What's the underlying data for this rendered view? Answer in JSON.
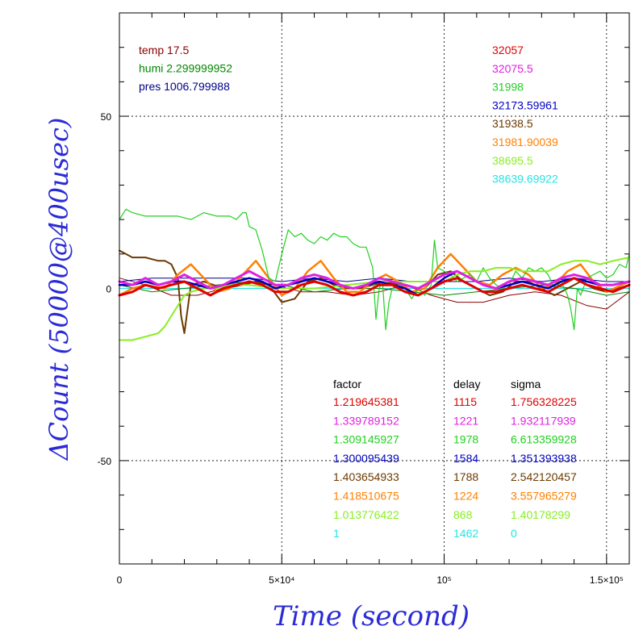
{
  "chart_data": {
    "type": "line",
    "title": "",
    "xlabel": "Time (second)",
    "ylabel": "ΔCount (50000@400usec)",
    "xlim": [
      0,
      157000
    ],
    "ylim": [
      -80,
      80
    ],
    "x_ticks": [
      {
        "value": 0,
        "label": "0"
      },
      {
        "value": 50000,
        "label": "5×10⁴"
      },
      {
        "value": 100000,
        "label": "10⁵"
      },
      {
        "value": 150000,
        "label": "1.5×10⁵"
      }
    ],
    "y_ticks": [
      {
        "value": 50,
        "label": "50"
      },
      {
        "value": 0,
        "label": "0"
      },
      {
        "value": -50,
        "label": "-50"
      }
    ],
    "grid": true,
    "env_labels": [
      {
        "text": "temp 17.5",
        "color": "#8b0000"
      },
      {
        "text": "humi 2.299999952",
        "color": "#008800"
      },
      {
        "text": "pres 1006.799988",
        "color": "#00008b"
      }
    ],
    "mean_labels": [
      {
        "text": "32057",
        "color": "#e00000"
      },
      {
        "text": "32075.5",
        "color": "#e020e0"
      },
      {
        "text": "31998",
        "color": "#20d020"
      },
      {
        "text": "32173.59961",
        "color": "#0000c0"
      },
      {
        "text": "31938.5",
        "color": "#6b3a00"
      },
      {
        "text": "31981.90039",
        "color": "#ff8000"
      },
      {
        "text": "38695.5",
        "color": "#88ee22"
      },
      {
        "text": "38639.69922",
        "color": "#22e5e5"
      }
    ],
    "table": {
      "headers": [
        "factor",
        "delay",
        "sigma"
      ],
      "rows": [
        {
          "factor": "1.219645381",
          "delay": "1115",
          "sigma": "1.756328225",
          "color": "#e00000"
        },
        {
          "factor": "1.339789152",
          "delay": "1221",
          "sigma": "1.932117939",
          "color": "#e020e0"
        },
        {
          "factor": "1.309145927",
          "delay": "1978",
          "sigma": "6.613359928",
          "color": "#20d020"
        },
        {
          "factor": "1.300095439",
          "delay": "1584",
          "sigma": "1.351393938",
          "color": "#0000c0"
        },
        {
          "factor": "1.403654933",
          "delay": "1788",
          "sigma": "2.542120457",
          "color": "#6b3a00"
        },
        {
          "factor": "1.418510675",
          "delay": "1224",
          "sigma": "3.557965279",
          "color": "#ff8000"
        },
        {
          "factor": "1.013776422",
          "delay": "868",
          "sigma": "1.40178299",
          "color": "#88ee22"
        },
        {
          "factor": "1",
          "delay": "1462",
          "sigma": "0",
          "color": "#22e5e5"
        }
      ]
    },
    "series": [
      {
        "color": "#22e5e5",
        "width": 1.2,
        "x": [
          0,
          20000,
          40000,
          60000,
          70000,
          80000,
          90000,
          100000,
          110000,
          120000,
          130000,
          140000,
          157000
        ],
        "y": [
          0,
          0,
          0,
          0,
          0,
          0,
          0,
          0,
          0,
          0,
          0,
          0,
          0
        ]
      },
      {
        "color": "#8b0000",
        "width": 1,
        "x": [
          0,
          8000,
          16000,
          24000,
          32000,
          40000,
          48000,
          56000,
          64000,
          72000,
          80000,
          88000,
          96000,
          104000,
          112000,
          120000,
          128000,
          136000,
          144000,
          150000,
          157000
        ],
        "y": [
          3,
          1,
          -2,
          -2,
          0,
          2,
          1,
          -1,
          -1,
          -2,
          -1,
          1,
          -2,
          -4,
          -4,
          -2,
          -1,
          -2,
          -5,
          -6,
          -1
        ]
      },
      {
        "color": "#008800",
        "width": 1,
        "x": [
          0,
          10000,
          20000,
          30000,
          40000,
          50000,
          60000,
          70000,
          80000,
          90000,
          100000,
          110000,
          120000,
          130000,
          140000,
          150000,
          157000
        ],
        "y": [
          1,
          -1,
          0,
          1,
          2,
          1,
          -1,
          0,
          0,
          -1,
          -2,
          -1,
          0,
          1,
          0,
          -2,
          -1
        ]
      },
      {
        "color": "#00008b",
        "width": 1,
        "x": [
          0,
          10000,
          20000,
          30000,
          40000,
          50000,
          60000,
          70000,
          80000,
          90000,
          100000,
          110000,
          120000,
          130000,
          140000,
          150000,
          157000
        ],
        "y": [
          2,
          3,
          3,
          3,
          3,
          2,
          3,
          2,
          3,
          2,
          2,
          2,
          3,
          2,
          3,
          2,
          2
        ]
      },
      {
        "color": "#6b3a00",
        "width": 2,
        "x": [
          0,
          4000,
          8000,
          12000,
          14000,
          16000,
          18000,
          19000,
          20000,
          22000,
          26000,
          32000,
          38000,
          42000,
          46000,
          50000,
          54000,
          58000,
          62000,
          66000,
          70000,
          74000,
          78000,
          82000,
          86000,
          90000,
          94000,
          98000,
          102000,
          106000,
          110000,
          114000,
          118000,
          122000,
          126000,
          130000,
          134000,
          138000,
          142000,
          146000,
          150000,
          157000
        ],
        "y": [
          11,
          9,
          9,
          8,
          8,
          7,
          3,
          -8,
          -13,
          1,
          2,
          0,
          1,
          2,
          1,
          -4,
          -3,
          2,
          3,
          1,
          0,
          0,
          1,
          2,
          1,
          -1,
          0,
          4,
          5,
          2,
          0,
          -2,
          -1,
          2,
          2,
          0,
          -2,
          0,
          2,
          0,
          -1,
          1
        ]
      },
      {
        "color": "#ff8000",
        "width": 2.5,
        "x": [
          0,
          4000,
          8000,
          14000,
          18000,
          22000,
          26000,
          30000,
          34000,
          38000,
          42000,
          46000,
          50000,
          54000,
          58000,
          62000,
          66000,
          70000,
          74000,
          78000,
          82000,
          86000,
          90000,
          94000,
          98000,
          102000,
          106000,
          110000,
          114000,
          118000,
          122000,
          126000,
          130000,
          134000,
          138000,
          142000,
          146000,
          150000,
          157000
        ],
        "y": [
          -2,
          0,
          1,
          0,
          4,
          7,
          3,
          -1,
          0,
          4,
          8,
          3,
          -2,
          0,
          5,
          8,
          3,
          -1,
          -1,
          2,
          4,
          2,
          -1,
          0,
          6,
          10,
          6,
          2,
          1,
          4,
          6,
          4,
          0,
          1,
          5,
          7,
          2,
          -1,
          2
        ]
      },
      {
        "color": "#20d020",
        "width": 1.2,
        "x": [
          0,
          2000,
          4000,
          8000,
          14000,
          18000,
          22000,
          26000,
          30000,
          34000,
          36000,
          38000,
          39000,
          40000,
          42000,
          44000,
          46000,
          48000,
          50000,
          52000,
          54000,
          56000,
          58000,
          60000,
          62000,
          64000,
          66000,
          68000,
          70000,
          72000,
          74000,
          76000,
          78000,
          79000,
          80000,
          81000,
          82000,
          83000,
          84000,
          86000,
          88000,
          90000,
          92000,
          94000,
          96000,
          97000,
          98000,
          100000,
          102000,
          104000,
          106000,
          108000,
          110000,
          112000,
          114000,
          116000,
          118000,
          120000,
          122000,
          124000,
          126000,
          128000,
          130000,
          132000,
          134000,
          136000,
          138000,
          139000,
          140000,
          141000,
          142000,
          144000,
          146000,
          148000,
          150000,
          152000,
          154000,
          156000,
          157000
        ],
        "y": [
          20,
          23,
          22,
          21,
          21,
          21,
          20,
          22,
          21,
          21,
          20,
          22,
          22,
          18,
          17,
          11,
          3,
          2,
          10,
          17,
          15,
          16,
          14,
          13,
          15,
          14,
          16,
          15,
          15,
          13,
          12,
          12,
          6,
          -9,
          0,
          2,
          -12,
          -4,
          0,
          1,
          0,
          -3,
          0,
          -2,
          1,
          14,
          6,
          5,
          4,
          2,
          3,
          4,
          2,
          6,
          3,
          1,
          0,
          1,
          5,
          3,
          6,
          5,
          6,
          4,
          0,
          2,
          -2,
          -6,
          -12,
          0,
          -2,
          3,
          4,
          5,
          3,
          4,
          7,
          6,
          10
        ]
      },
      {
        "color": "#88ee22",
        "width": 2,
        "x": [
          0,
          4000,
          8000,
          12000,
          14000,
          16000,
          18000,
          20000,
          22000,
          26000,
          30000,
          34000,
          40000,
          50000,
          60000,
          70000,
          80000,
          90000,
          100000,
          104000,
          108000,
          112000,
          116000,
          120000,
          124000,
          128000,
          132000,
          136000,
          140000,
          144000,
          148000,
          152000,
          157000
        ],
        "y": [
          -15,
          -15,
          -14,
          -13,
          -11,
          -8,
          -5,
          -2,
          -1,
          0,
          0,
          1,
          1,
          0,
          0,
          1,
          2,
          2,
          2,
          4,
          5,
          5,
          6,
          6,
          5,
          5,
          5,
          7,
          8,
          8,
          7,
          8,
          9
        ]
      },
      {
        "color": "#0000c0",
        "width": 2.5,
        "x": [
          0,
          4000,
          8000,
          12000,
          16000,
          20000,
          24000,
          28000,
          32000,
          36000,
          40000,
          44000,
          48000,
          52000,
          56000,
          60000,
          64000,
          68000,
          72000,
          76000,
          80000,
          84000,
          88000,
          92000,
          96000,
          100000,
          104000,
          108000,
          112000,
          116000,
          120000,
          124000,
          128000,
          132000,
          136000,
          140000,
          144000,
          148000,
          152000,
          157000
        ],
        "y": [
          1,
          1,
          2,
          1,
          2,
          2,
          1,
          0,
          1,
          2,
          3,
          2,
          0,
          1,
          2,
          3,
          2,
          1,
          0,
          1,
          2,
          1,
          0,
          -2,
          0,
          3,
          5,
          3,
          1,
          0,
          1,
          2,
          1,
          0,
          2,
          3,
          2,
          1,
          1,
          2
        ]
      },
      {
        "color": "#e020e0",
        "width": 3,
        "x": [
          0,
          4000,
          8000,
          12000,
          16000,
          20000,
          24000,
          28000,
          32000,
          36000,
          40000,
          44000,
          48000,
          52000,
          56000,
          60000,
          64000,
          68000,
          72000,
          76000,
          80000,
          84000,
          88000,
          92000,
          96000,
          100000,
          104000,
          108000,
          112000,
          116000,
          120000,
          124000,
          128000,
          132000,
          136000,
          140000,
          144000,
          148000,
          152000,
          157000
        ],
        "y": [
          2,
          1,
          3,
          1,
          2,
          4,
          2,
          0,
          1,
          3,
          5,
          3,
          1,
          1,
          3,
          4,
          3,
          1,
          0,
          1,
          3,
          2,
          1,
          0,
          2,
          4,
          5,
          3,
          1,
          0,
          2,
          3,
          2,
          1,
          3,
          4,
          3,
          1,
          1,
          2
        ]
      },
      {
        "color": "#e00000",
        "width": 3,
        "x": [
          0,
          4000,
          8000,
          12000,
          16000,
          20000,
          24000,
          28000,
          32000,
          36000,
          40000,
          44000,
          48000,
          52000,
          56000,
          60000,
          64000,
          68000,
          72000,
          76000,
          80000,
          84000,
          88000,
          92000,
          96000,
          100000,
          104000,
          108000,
          112000,
          116000,
          120000,
          124000,
          128000,
          132000,
          136000,
          140000,
          144000,
          148000,
          152000,
          157000
        ],
        "y": [
          -2,
          -1,
          1,
          0,
          1,
          2,
          0,
          -2,
          0,
          1,
          2,
          1,
          -1,
          -1,
          1,
          2,
          1,
          -1,
          -2,
          -1,
          1,
          1,
          -1,
          -2,
          0,
          2,
          3,
          1,
          -1,
          -1,
          0,
          1,
          0,
          -1,
          1,
          3,
          1,
          0,
          -1,
          1
        ]
      }
    ]
  }
}
